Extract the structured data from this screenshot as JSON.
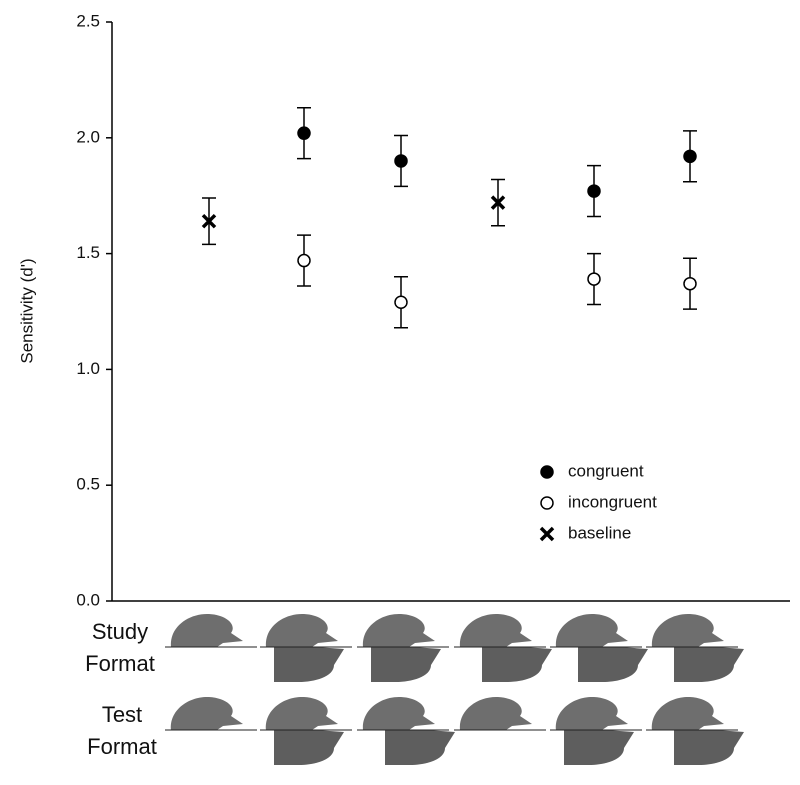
{
  "chart_data": {
    "type": "scatter",
    "y_label": "Sensitivity (d')",
    "categories": [
      null,
      null,
      null,
      null,
      null,
      null
    ],
    "ylim": [
      0,
      2.5
    ],
    "yticks": [
      {
        "value": 0,
        "label": "0.0"
      },
      0.5,
      {
        "value": 1,
        "label": "1.0"
      },
      1.5,
      {
        "value": 2,
        "label": "2.0"
      },
      2.5
    ],
    "series": [
      {
        "name": "congruent",
        "color": "#000000",
        "marker": "filled-circle",
        "values": [
          null,
          2.02,
          1.9,
          null,
          1.77,
          1.92
        ],
        "errors": [
          null,
          0.11,
          0.11,
          null,
          0.11,
          0.11
        ]
      },
      {
        "name": "incongruent",
        "color": "#000000",
        "marker": "open-circle",
        "values": [
          null,
          1.47,
          1.29,
          null,
          1.39,
          1.37
        ],
        "errors": [
          null,
          0.11,
          0.11,
          null,
          0.11,
          0.11
        ]
      },
      {
        "name": "baseline",
        "color": "#000000",
        "marker": "x",
        "values": [
          1.64,
          null,
          null,
          1.72,
          null,
          null
        ],
        "errors": [
          0.1,
          null,
          null,
          0.1,
          null,
          null
        ]
      }
    ],
    "format_rows": [
      [
        "Study",
        "Format"
      ],
      [
        "Test",
        "Format"
      ]
    ]
  }
}
